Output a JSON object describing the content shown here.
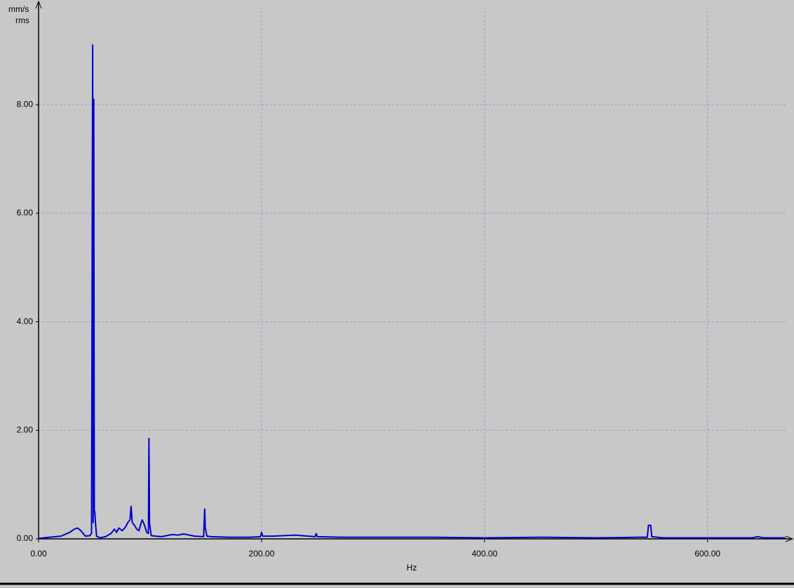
{
  "chart_data": {
    "type": "line",
    "x_label": "Hz",
    "y_label": "mm/s",
    "y_label_sub": "rms",
    "xlim": [
      0,
      670
    ],
    "ylim": [
      0,
      9.8
    ],
    "xticks": [
      {
        "value": 0,
        "label": "0.00"
      },
      {
        "value": 200,
        "label": "200.00"
      },
      {
        "value": 400,
        "label": "400.00"
      },
      {
        "value": 600,
        "label": "600.00"
      }
    ],
    "yticks": [
      {
        "value": 0,
        "label": "0.00"
      },
      {
        "value": 2,
        "label": "2.00"
      },
      {
        "value": 4,
        "label": "4.00"
      },
      {
        "value": 6,
        "label": "6.00"
      },
      {
        "value": 8,
        "label": "8.00"
      }
    ],
    "grid": true,
    "series": [
      {
        "color": "#0000cc",
        "x": [
          0,
          5,
          10,
          20,
          28,
          32,
          35,
          38,
          42,
          46,
          47.5,
          48.5,
          49,
          49.5,
          50,
          50.5,
          51,
          52,
          55,
          60,
          65,
          68,
          70,
          72,
          75,
          78,
          80,
          82,
          83,
          84,
          86,
          88,
          90,
          92,
          93,
          95,
          97,
          98.5,
          99,
          99.5,
          101,
          105,
          110,
          115,
          120,
          125,
          130,
          140,
          148,
          149,
          149.5,
          151,
          155,
          170,
          190,
          199,
          200,
          201,
          210,
          230,
          248,
          249,
          250,
          270,
          300,
          350,
          400,
          450,
          500,
          540,
          546,
          547,
          548,
          549,
          550,
          560,
          600,
          640,
          645,
          650,
          670
        ],
        "values": [
          0.01,
          0.02,
          0.03,
          0.05,
          0.12,
          0.18,
          0.2,
          0.15,
          0.05,
          0.06,
          0.1,
          9.1,
          0.3,
          8.1,
          0.5,
          0.5,
          0.3,
          0.05,
          0.02,
          0.04,
          0.1,
          0.18,
          0.12,
          0.2,
          0.15,
          0.22,
          0.3,
          0.35,
          0.6,
          0.3,
          0.25,
          0.18,
          0.15,
          0.3,
          0.35,
          0.25,
          0.12,
          0.1,
          1.85,
          0.3,
          0.06,
          0.05,
          0.04,
          0.06,
          0.08,
          0.07,
          0.09,
          0.05,
          0.04,
          0.55,
          0.2,
          0.05,
          0.04,
          0.03,
          0.03,
          0.04,
          0.12,
          0.05,
          0.05,
          0.07,
          0.04,
          0.1,
          0.04,
          0.03,
          0.03,
          0.03,
          0.02,
          0.03,
          0.02,
          0.03,
          0.03,
          0.25,
          0.25,
          0.25,
          0.04,
          0.02,
          0.02,
          0.02,
          0.04,
          0.02,
          0.02
        ]
      }
    ]
  }
}
